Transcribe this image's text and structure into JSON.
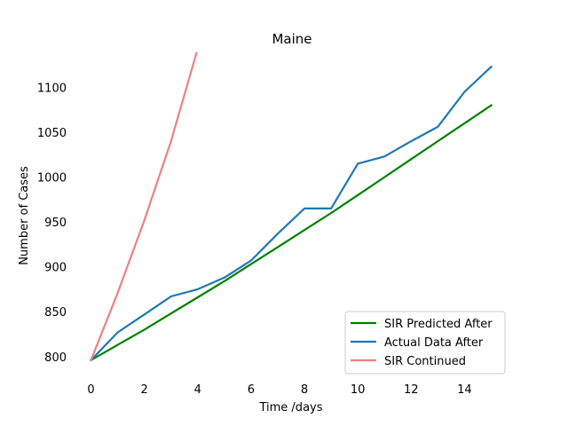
{
  "chart_data": {
    "type": "line",
    "title": "Maine",
    "xlabel": "Time /days",
    "ylabel": "Number of Cases",
    "xlim": [
      -0.75,
      15.75
    ],
    "ylim": [
      780,
      1140
    ],
    "x_ticks": [
      0,
      2,
      4,
      6,
      8,
      10,
      12,
      14
    ],
    "y_ticks": [
      800,
      850,
      900,
      950,
      1000,
      1050,
      1100
    ],
    "grid": false,
    "legend_position": "bottom-right",
    "series": [
      {
        "name": "SIR Predicted After",
        "color": "#008000",
        "x": [
          0,
          1,
          2,
          3,
          4,
          5,
          6,
          7,
          8,
          9,
          10,
          11,
          12,
          13,
          14,
          15
        ],
        "values": [
          796,
          813,
          830,
          848,
          866,
          884,
          903,
          922,
          941,
          960,
          980,
          1000,
          1020,
          1040,
          1060,
          1080
        ]
      },
      {
        "name": "Actual Data After",
        "color": "#1f77b4",
        "x": [
          0,
          1,
          2,
          3,
          4,
          5,
          6,
          7,
          8,
          9,
          10,
          11,
          12,
          13,
          14,
          15
        ],
        "values": [
          796,
          827,
          847,
          867,
          875,
          888,
          907,
          937,
          965,
          965,
          1015,
          1023,
          1040,
          1056,
          1095,
          1123
        ]
      },
      {
        "name": "SIR Continued",
        "color": "#f08080",
        "x": [
          0,
          1,
          2,
          3,
          3.95
        ],
        "values": [
          796,
          871,
          952,
          1040,
          1138
        ]
      }
    ]
  }
}
